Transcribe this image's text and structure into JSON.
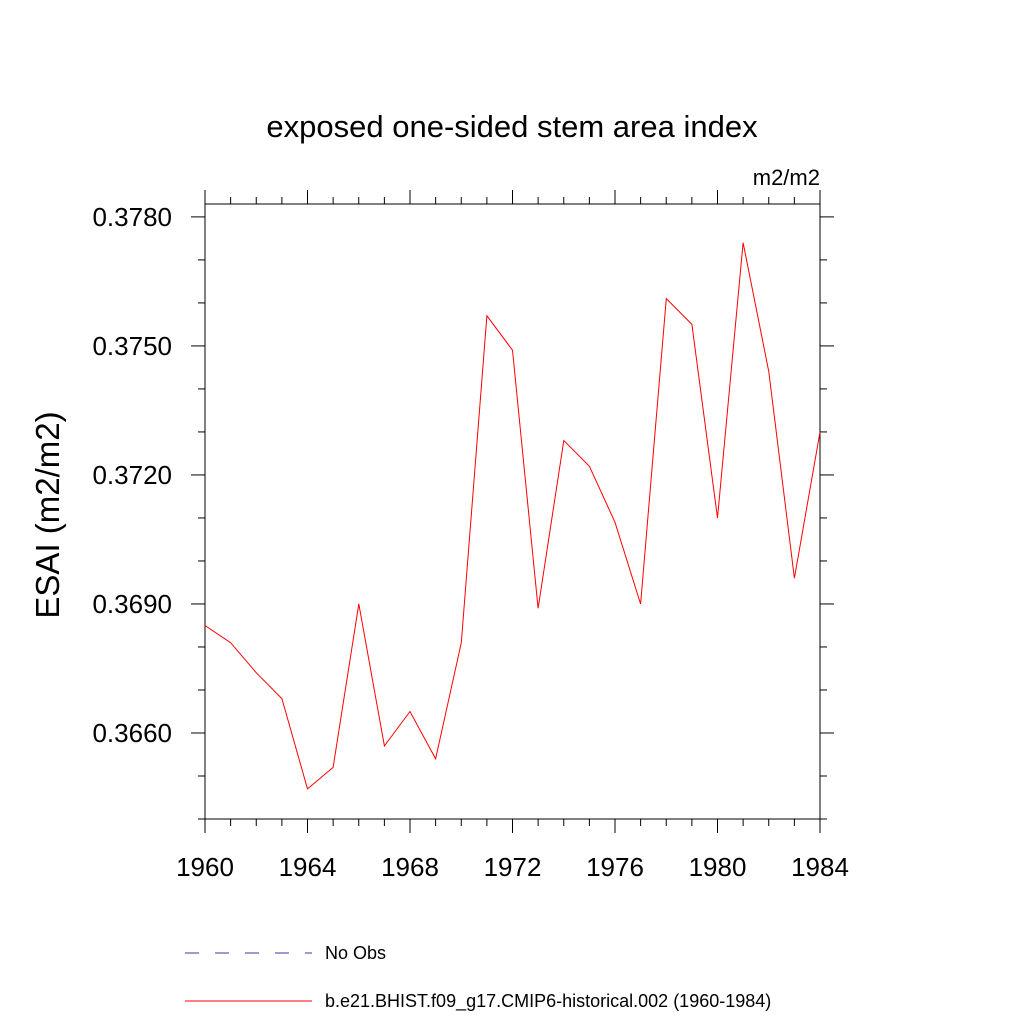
{
  "chart_data": {
    "type": "line",
    "title": "exposed one-sided stem area index",
    "units": "m2/m2",
    "xlabel": "",
    "ylabel": "ESAI  (m2/m2)",
    "xlim": [
      1960,
      1984
    ],
    "ylim": [
      0.364,
      0.3783
    ],
    "x_ticks": [
      1960,
      1964,
      1968,
      1972,
      1976,
      1980,
      1984
    ],
    "x_tick_labels": [
      "1960",
      "1964",
      "1968",
      "1972",
      "1976",
      "1980",
      "1984"
    ],
    "y_ticks": [
      0.366,
      0.369,
      0.372,
      0.375,
      0.378
    ],
    "y_tick_labels": [
      "0.3660",
      "0.3690",
      "0.3720",
      "0.3750",
      "0.3780"
    ],
    "grid": false,
    "series": [
      {
        "name": "b.e21.BHIST.f09_g17.CMIP6-historical.002 (1960-1984)",
        "color": "#ff0000",
        "style": "solid",
        "x": [
          1960,
          1961,
          1962,
          1963,
          1964,
          1965,
          1966,
          1967,
          1968,
          1969,
          1970,
          1971,
          1972,
          1973,
          1974,
          1975,
          1976,
          1977,
          1978,
          1979,
          1980,
          1981,
          1982,
          1983,
          1984
        ],
        "values": [
          0.3685,
          0.3681,
          0.3674,
          0.3668,
          0.3647,
          0.3652,
          0.369,
          0.3657,
          0.3665,
          0.3654,
          0.3681,
          0.3757,
          0.3749,
          0.3689,
          0.3728,
          0.3722,
          0.3709,
          0.369,
          0.3761,
          0.3755,
          0.371,
          0.3774,
          0.3744,
          0.3696,
          0.373
        ]
      }
    ],
    "legend": {
      "placement": "bottom",
      "entries": [
        {
          "label": "No Obs",
          "color": "#3a3aa6",
          "style": "dashed"
        },
        {
          "label": "b.e21.BHIST.f09_g17.CMIP6-historical.002 (1960-1984)",
          "color": "#ff0000",
          "style": "solid"
        }
      ]
    }
  }
}
